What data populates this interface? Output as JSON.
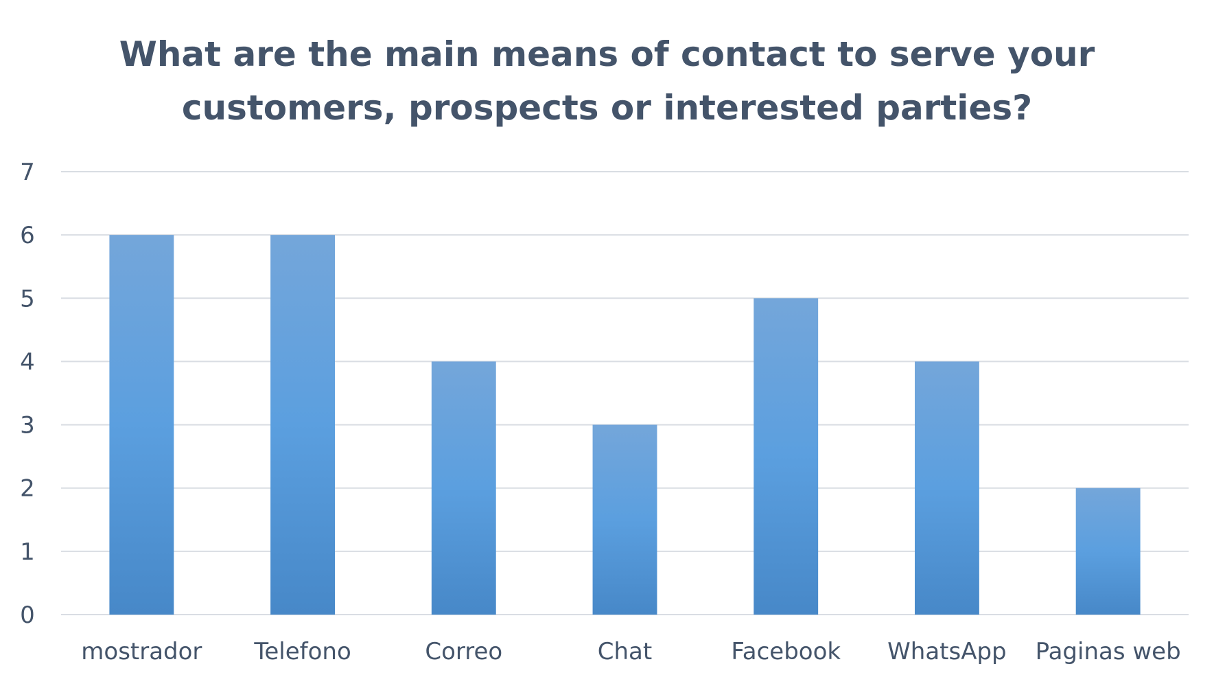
{
  "chart_data": {
    "type": "bar",
    "title_lines": [
      "What are the main means of contact to serve your",
      "customers, prospects or interested parties?"
    ],
    "categories": [
      "mostrador",
      "Telefono",
      "Correo",
      "Chat",
      "Facebook",
      "WhatsApp",
      "Paginas web"
    ],
    "values": [
      6,
      6,
      4,
      3,
      5,
      4,
      2
    ],
    "ylim": [
      0,
      7
    ],
    "yticks": [
      "0",
      "1",
      "2",
      "3",
      "4",
      "5",
      "6",
      "7"
    ],
    "grid": true,
    "legend": "none",
    "colors": {
      "bar_top": "#74a6da",
      "bar_mid": "#5b9fdf",
      "bar_bottom": "#4788c8",
      "text": "#44546a",
      "grid": "#d9dde3"
    }
  }
}
